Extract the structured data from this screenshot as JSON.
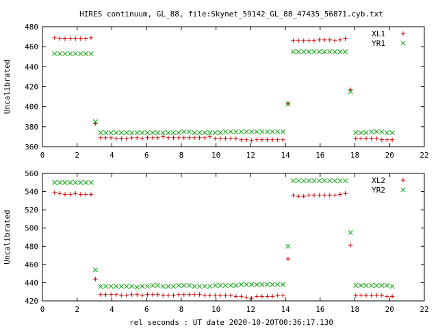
{
  "title": "HIRES continuum, GL_88, file:Skynet_59142_GL_88_47435_56871.cyb.txt",
  "xlabel": "rel seconds : UT date 2020-10-20T00:36:17.130",
  "chart_data": [
    {
      "type": "scatter",
      "ylabel": "Uncalibrated",
      "xlim": [
        0,
        22
      ],
      "ylim": [
        360,
        480
      ],
      "xticks": [
        0,
        2,
        4,
        6,
        8,
        10,
        12,
        14,
        16,
        18,
        20,
        22
      ],
      "yticks": [
        360,
        380,
        400,
        420,
        440,
        460,
        480
      ],
      "legend_position": "top-right",
      "grid": false,
      "series": [
        {
          "name": "XL1",
          "marker": "plus",
          "color": "#d00000",
          "x": [
            0.7,
            1.0,
            1.3,
            1.6,
            1.9,
            2.2,
            2.5,
            2.8,
            3.05,
            3.35,
            3.65,
            3.95,
            4.25,
            4.55,
            4.85,
            5.15,
            5.45,
            5.75,
            6.05,
            6.35,
            6.65,
            6.95,
            7.25,
            7.55,
            7.85,
            8.15,
            8.45,
            8.75,
            9.05,
            9.35,
            9.65,
            9.95,
            10.25,
            10.55,
            10.85,
            11.15,
            11.45,
            11.75,
            12.05,
            12.35,
            12.65,
            12.95,
            13.25,
            13.55,
            13.85,
            14.15,
            14.45,
            14.75,
            15.05,
            15.35,
            15.65,
            15.95,
            16.25,
            16.55,
            16.85,
            17.15,
            17.45,
            17.75,
            18.05,
            18.35,
            18.65,
            18.95,
            19.25,
            19.55,
            19.85,
            20.15
          ],
          "y": [
            469,
            468,
            468,
            468,
            468,
            468,
            468,
            469,
            383,
            369,
            369,
            369,
            368,
            368,
            368,
            369,
            369,
            368,
            369,
            369,
            369,
            370,
            369,
            369,
            369,
            369,
            369,
            369,
            369,
            369,
            370,
            368,
            368,
            368,
            368,
            368,
            367,
            367,
            366,
            367,
            367,
            367,
            367,
            367,
            367,
            403,
            466,
            466,
            466,
            466,
            466,
            467,
            467,
            467,
            466,
            467,
            468,
            417,
            368,
            368,
            368,
            368,
            368,
            367,
            367,
            367
          ]
        },
        {
          "name": "YR1",
          "marker": "cross",
          "color": "#00a000",
          "x": [
            0.7,
            1.0,
            1.3,
            1.6,
            1.9,
            2.2,
            2.5,
            2.8,
            3.05,
            3.35,
            3.65,
            3.95,
            4.25,
            4.55,
            4.85,
            5.15,
            5.45,
            5.75,
            6.05,
            6.35,
            6.65,
            6.95,
            7.25,
            7.55,
            7.85,
            8.15,
            8.45,
            8.75,
            9.05,
            9.35,
            9.65,
            9.95,
            10.25,
            10.55,
            10.85,
            11.15,
            11.45,
            11.75,
            12.05,
            12.35,
            12.65,
            12.95,
            13.25,
            13.55,
            13.85,
            14.15,
            14.45,
            14.75,
            15.05,
            15.35,
            15.65,
            15.95,
            16.25,
            16.55,
            16.85,
            17.15,
            17.45,
            17.75,
            18.05,
            18.35,
            18.65,
            18.95,
            19.25,
            19.55,
            19.85,
            20.15
          ],
          "y": [
            453,
            453,
            453,
            453,
            453,
            453,
            453,
            453,
            385,
            374,
            374,
            374,
            374,
            374,
            374,
            374,
            374,
            374,
            374,
            374,
            374,
            374,
            374,
            374,
            374,
            375,
            375,
            374,
            374,
            374,
            374,
            374,
            374,
            375,
            375,
            375,
            375,
            375,
            375,
            375,
            375,
            375,
            375,
            375,
            375,
            403,
            455,
            455,
            455,
            455,
            455,
            455,
            455,
            455,
            455,
            455,
            455,
            415,
            374,
            374,
            374,
            375,
            375,
            375,
            374,
            374
          ]
        }
      ]
    },
    {
      "type": "scatter",
      "ylabel": "Uncalibrated",
      "xlim": [
        0,
        22
      ],
      "ylim": [
        420,
        560
      ],
      "xticks": [
        0,
        2,
        4,
        6,
        8,
        10,
        12,
        14,
        16,
        18,
        20,
        22
      ],
      "yticks": [
        420,
        440,
        460,
        480,
        500,
        520,
        540,
        560
      ],
      "legend_position": "top-right",
      "grid": false,
      "series": [
        {
          "name": "XL2",
          "marker": "plus",
          "color": "#d00000",
          "x": [
            0.7,
            1.0,
            1.3,
            1.6,
            1.9,
            2.2,
            2.5,
            2.8,
            3.05,
            3.35,
            3.65,
            3.95,
            4.25,
            4.55,
            4.85,
            5.15,
            5.45,
            5.75,
            6.05,
            6.35,
            6.65,
            6.95,
            7.25,
            7.55,
            7.85,
            8.15,
            8.45,
            8.75,
            9.05,
            9.35,
            9.65,
            9.95,
            10.25,
            10.55,
            10.85,
            11.15,
            11.45,
            11.75,
            12.05,
            12.35,
            12.65,
            12.95,
            13.25,
            13.55,
            13.85,
            14.15,
            14.45,
            14.75,
            15.05,
            15.35,
            15.65,
            15.95,
            16.25,
            16.55,
            16.85,
            17.15,
            17.45,
            17.75,
            18.05,
            18.35,
            18.65,
            18.95,
            19.25,
            19.55,
            19.85,
            20.15
          ],
          "y": [
            539,
            538,
            537,
            537,
            538,
            537,
            537,
            537,
            444,
            427,
            427,
            427,
            427,
            426,
            426,
            427,
            427,
            426,
            427,
            427,
            427,
            426,
            426,
            426,
            427,
            427,
            427,
            427,
            427,
            426,
            426,
            426,
            426,
            426,
            426,
            425,
            425,
            424,
            423,
            425,
            425,
            425,
            425,
            426,
            426,
            466,
            536,
            535,
            535,
            536,
            536,
            536,
            536,
            536,
            536,
            537,
            538,
            481,
            426,
            426,
            426,
            426,
            426,
            426,
            425,
            425
          ]
        },
        {
          "name": "YR2",
          "marker": "cross",
          "color": "#00a000",
          "x": [
            0.7,
            1.0,
            1.3,
            1.6,
            1.9,
            2.2,
            2.5,
            2.8,
            3.05,
            3.35,
            3.65,
            3.95,
            4.25,
            4.55,
            4.85,
            5.15,
            5.45,
            5.75,
            6.05,
            6.35,
            6.65,
            6.95,
            7.25,
            7.55,
            7.85,
            8.15,
            8.45,
            8.75,
            9.05,
            9.35,
            9.65,
            9.95,
            10.25,
            10.55,
            10.85,
            11.15,
            11.45,
            11.75,
            12.05,
            12.35,
            12.65,
            12.95,
            13.25,
            13.55,
            13.85,
            14.15,
            14.45,
            14.75,
            15.05,
            15.35,
            15.65,
            15.95,
            16.25,
            16.55,
            16.85,
            17.15,
            17.45,
            17.75,
            18.05,
            18.35,
            18.65,
            18.95,
            19.25,
            19.55,
            19.85,
            20.15
          ],
          "y": [
            550,
            550,
            550,
            550,
            550,
            550,
            550,
            550,
            454,
            436,
            436,
            436,
            436,
            436,
            436,
            436,
            435,
            436,
            436,
            437,
            437,
            436,
            436,
            436,
            437,
            437,
            437,
            436,
            436,
            436,
            436,
            437,
            437,
            437,
            437,
            437,
            438,
            438,
            438,
            438,
            438,
            438,
            438,
            438,
            438,
            480,
            552,
            552,
            552,
            552,
            552,
            552,
            552,
            552,
            552,
            552,
            552,
            495,
            437,
            437,
            437,
            437,
            437,
            437,
            437,
            436
          ]
        }
      ]
    }
  ]
}
